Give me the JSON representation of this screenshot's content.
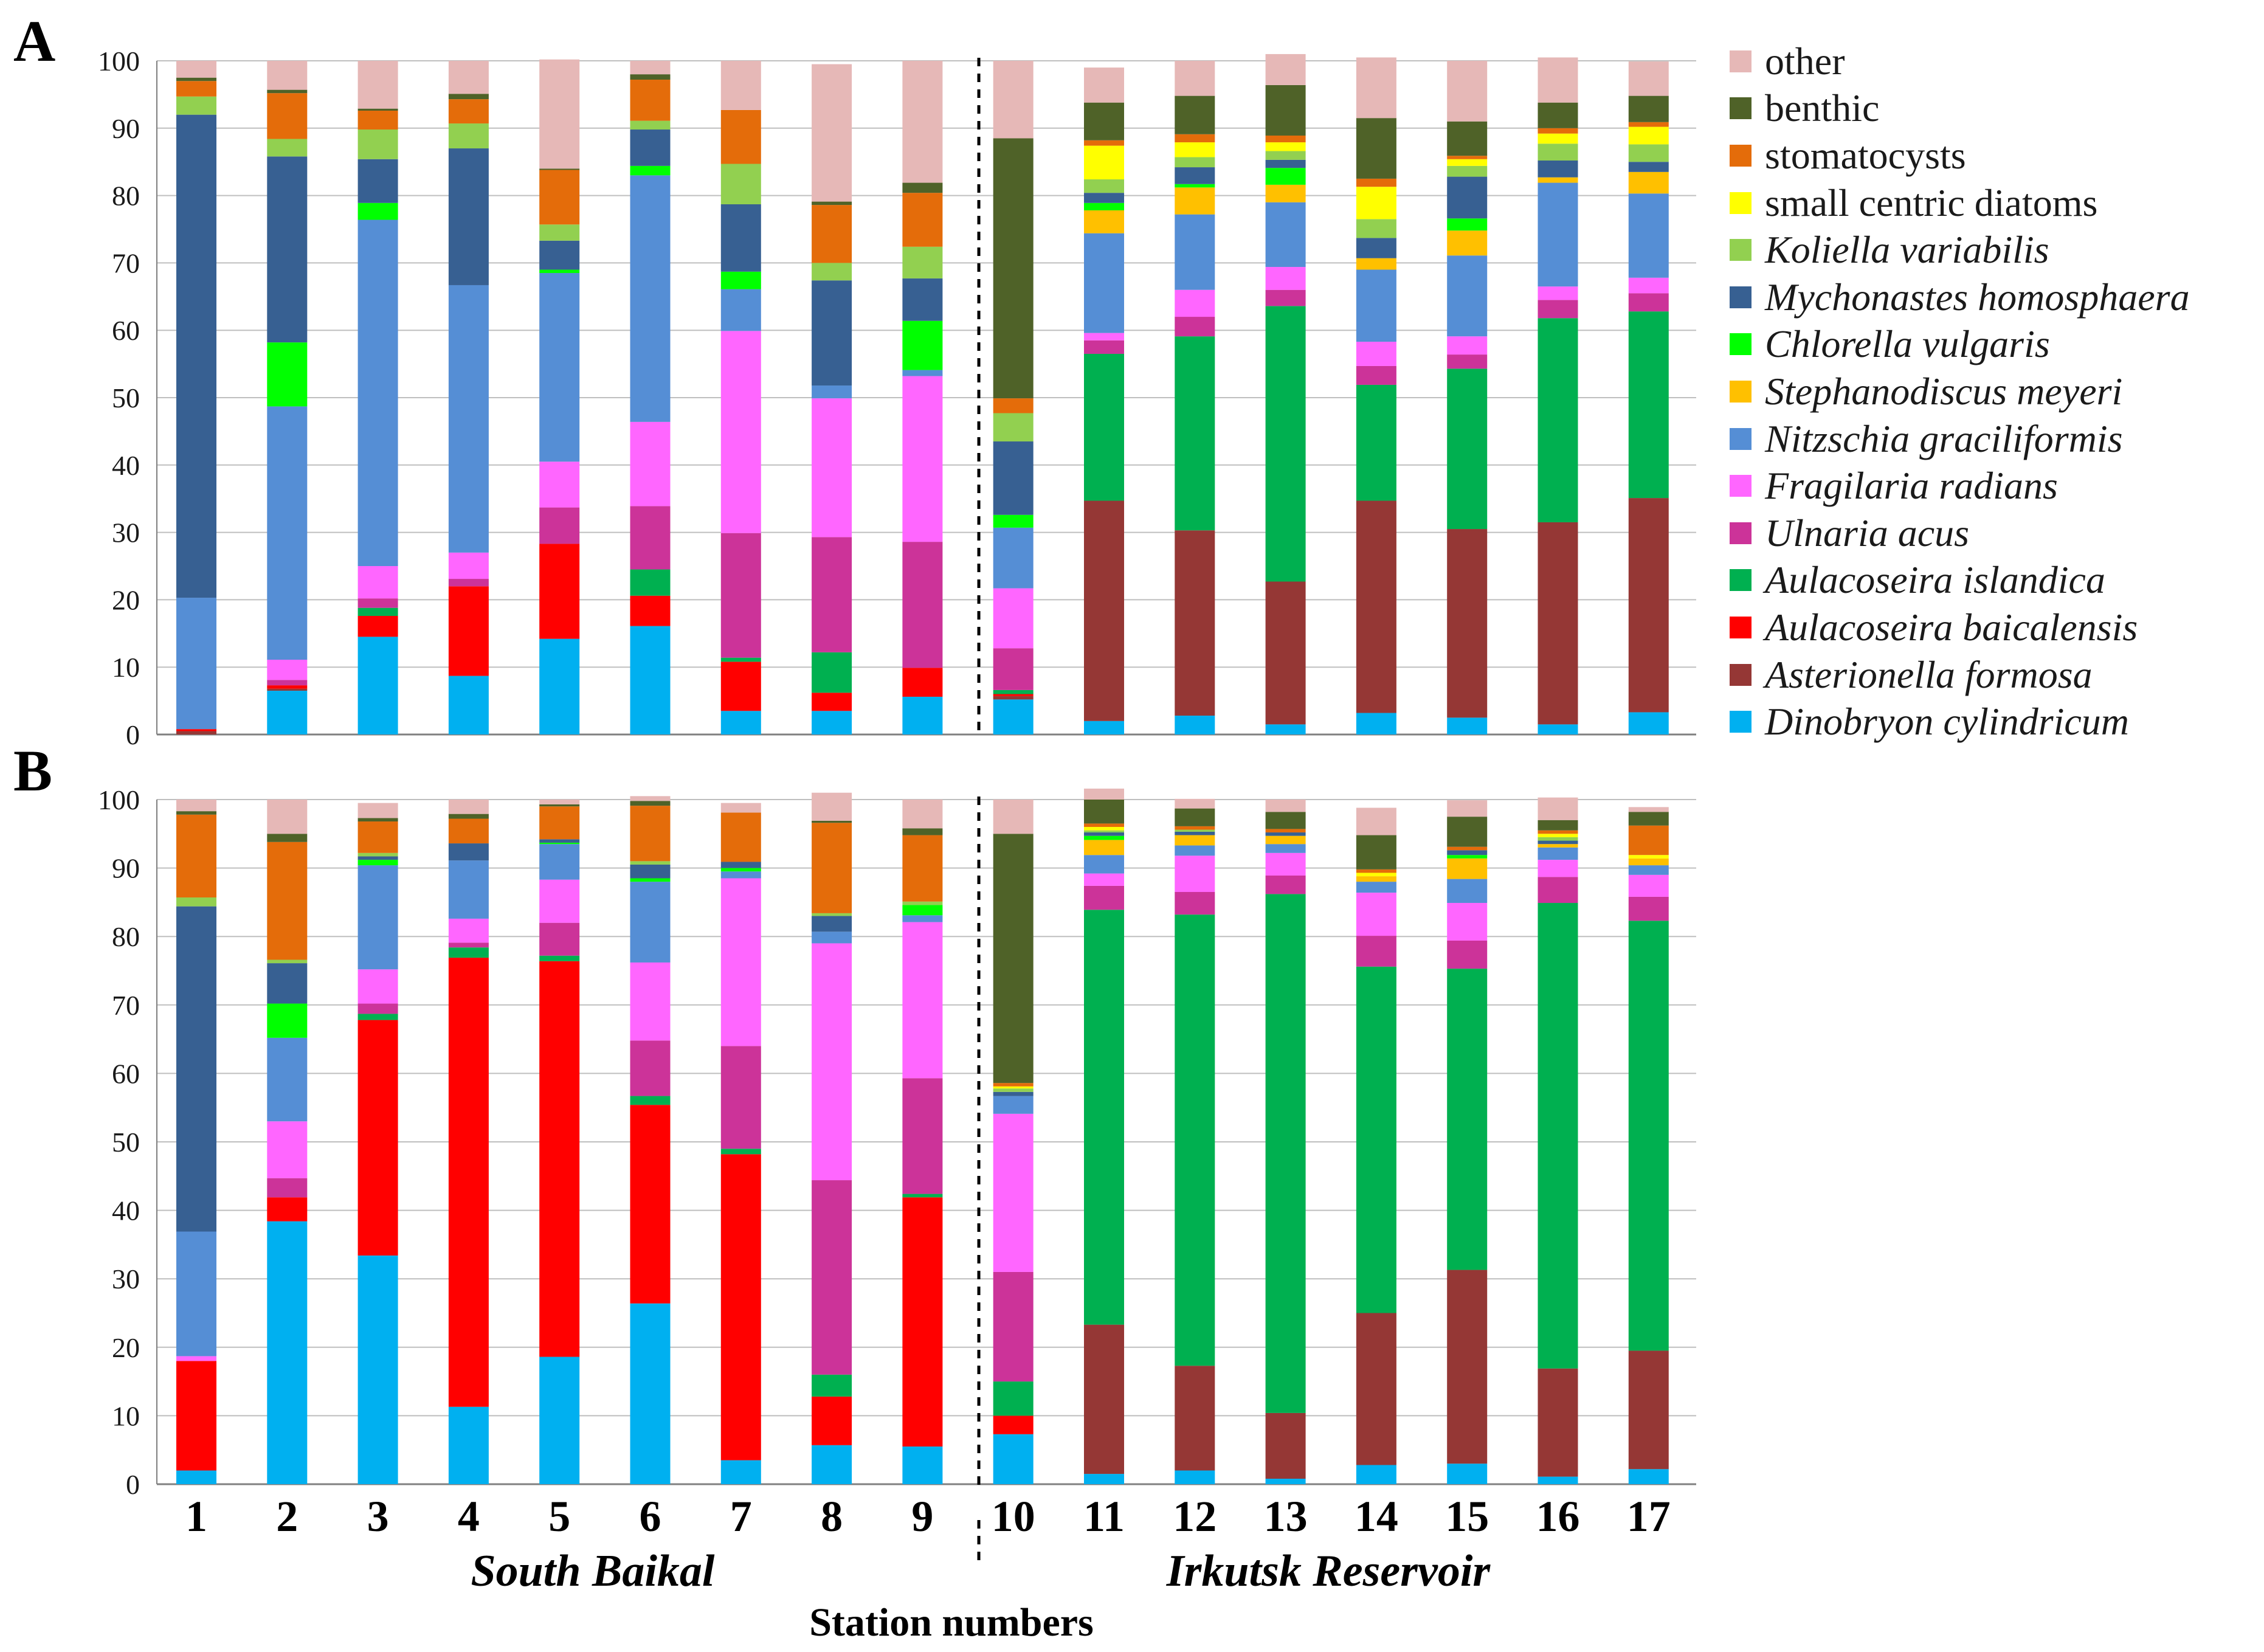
{
  "chart_data": {
    "type": "bar",
    "stacked": true,
    "x": [
      "1",
      "2",
      "3",
      "4",
      "5",
      "6",
      "7",
      "8",
      "9",
      "10",
      "11",
      "12",
      "13",
      "14",
      "15",
      "16",
      "17"
    ],
    "xlabel": "Station numbers",
    "region_labels": [
      "South  Baikal",
      "Irkutsk Reservoir"
    ],
    "y_ticks": [
      "0",
      "10",
      "20",
      "30",
      "40",
      "50",
      "60",
      "70",
      "80",
      "90",
      "100"
    ],
    "ylim": [
      0,
      100
    ],
    "grid": true,
    "legend_position": "right",
    "categories": [
      {
        "name": "other",
        "color": "#e6b8b7",
        "italic": false
      },
      {
        "name": "benthic",
        "color": "#4f6228",
        "italic": false
      },
      {
        "name": "stomatocysts",
        "color": "#e46c0a",
        "italic": false
      },
      {
        "name": "small centric diatoms",
        "color": "#ffff00",
        "italic": false
      },
      {
        "name": "Koliella variabilis",
        "color": "#92d050",
        "italic": true
      },
      {
        "name": "Mychonastes homosphaera",
        "color": "#376092",
        "italic": true
      },
      {
        "name": "Chlorella vulgaris",
        "color": "#00ff00",
        "italic": true
      },
      {
        "name": "Stephanodiscus meyeri",
        "color": "#ffc000",
        "italic": true
      },
      {
        "name": "Nitzschia graciliformis",
        "color": "#558ed5",
        "italic": true
      },
      {
        "name": "Fragilaria radians",
        "color": "#ff66ff",
        "italic": true
      },
      {
        "name": "Ulnaria acus",
        "color": "#cc3399",
        "italic": true
      },
      {
        "name": "Aulacoseira islandica",
        "color": "#00b050",
        "italic": true
      },
      {
        "name": "Aulacoseira baicalensis",
        "color": "#ff0000",
        "italic": true
      },
      {
        "name": "Asterionella formosa",
        "color": "#953735",
        "italic": true
      },
      {
        "name": "Dinobryon cylindricum",
        "color": "#00b0f0",
        "italic": true
      }
    ],
    "panels": [
      {
        "label": "A",
        "stack_order_bottom_to_top": [
          "Dinobryon cylindricum",
          "Asterionella formosa",
          "Aulacoseira baicalensis",
          "Aulacoseira islandica",
          "Ulnaria acus",
          "Fragilaria radians",
          "Nitzschia graciliformis",
          "Stephanodiscus meyeri",
          "Chlorella vulgaris",
          "Mychonastes homosphaera",
          "Koliella variabilis",
          "small centric diatoms",
          "stomatocysts",
          "benthic",
          "other"
        ],
        "series": [
          {
            "name": "Dinobryon cylindricum",
            "values": [
              0,
              6.5,
              14.5,
              8.7,
              14.2,
              16.1,
              3.5,
              3.5,
              5.6,
              5.2,
              2,
              2.8,
              1.5,
              3.2,
              2.5,
              1.5,
              3.3
            ]
          },
          {
            "name": "Asterionella formosa",
            "values": [
              0.5,
              0.3,
              0,
              0,
              0,
              0,
              0,
              0,
              0,
              0.5,
              32.7,
              27.5,
              21.2,
              31.5,
              28,
              30,
              31.8
            ]
          },
          {
            "name": "Aulacoseira baicalensis",
            "values": [
              0.3,
              0.5,
              3.1,
              13.3,
              14.1,
              4.5,
              7.3,
              2.7,
              4.3,
              0.3,
              0,
              0,
              0,
              0,
              0,
              0,
              0
            ]
          },
          {
            "name": "Aulacoseira islandica",
            "values": [
              0,
              0,
              1.2,
              0,
              0,
              3.9,
              0.6,
              6,
              0,
              0.6,
              21.8,
              28.8,
              40.9,
              17.2,
              23.8,
              30.3,
              27.7
            ]
          },
          {
            "name": "Ulnaria acus",
            "values": [
              0,
              0.8,
              1.4,
              1.1,
              5.4,
              9.4,
              18.5,
              17.1,
              18.7,
              6.2,
              2,
              2.9,
              2.4,
              2.8,
              2.1,
              2.7,
              2.7
            ]
          },
          {
            "name": "Fragilaria radians",
            "values": [
              0,
              3,
              4.8,
              3.9,
              6.8,
              12.5,
              30,
              20.6,
              24.6,
              8.9,
              1.1,
              4,
              3.4,
              3.6,
              2.7,
              2,
              2.3
            ]
          },
          {
            "name": "Nitzschia graciliformis",
            "values": [
              19.5,
              37.6,
              51.4,
              39.7,
              28,
              36.6,
              6.2,
              1.9,
              0.9,
              9,
              14.8,
              11.2,
              9.6,
              10.7,
              12,
              15.4,
              12.5
            ]
          },
          {
            "name": "Stephanodiscus meyeri",
            "values": [
              0,
              0,
              0,
              0,
              0,
              0,
              0,
              0,
              0,
              0,
              3.4,
              4,
              2.6,
              1.7,
              3.7,
              0.8,
              3.2
            ]
          },
          {
            "name": "Chlorella vulgaris",
            "values": [
              0,
              9.5,
              2.5,
              0,
              0.5,
              1.4,
              2.6,
              0,
              7.3,
              1.9,
              1.1,
              0.5,
              2.5,
              0,
              1.8,
              0,
              0
            ]
          },
          {
            "name": "Mychonastes homosphaera",
            "values": [
              71.7,
              27.6,
              6.5,
              20.3,
              4.3,
              5.4,
              10,
              15.6,
              6.3,
              10.9,
              1.5,
              2.5,
              1.2,
              3,
              6.2,
              2.5,
              1.5
            ]
          },
          {
            "name": "Koliella variabilis",
            "values": [
              2.7,
              2.6,
              4.4,
              3.7,
              2.4,
              1.3,
              6,
              2.6,
              4.7,
              4.2,
              2,
              1.5,
              1.3,
              2.8,
              1.6,
              2.5,
              2.6
            ]
          },
          {
            "name": "small centric diatoms",
            "values": [
              0,
              0,
              0,
              0,
              0,
              0,
              0,
              0,
              0,
              0,
              5,
              2.2,
              1.3,
              4.8,
              1,
              1.5,
              2.6
            ]
          },
          {
            "name": "stomatocysts",
            "values": [
              2.3,
              6.8,
              2.8,
              3.6,
              8.1,
              6.1,
              8,
              8.6,
              8,
              2.2,
              0.8,
              1.2,
              1,
              1.2,
              0.5,
              0.8,
              0.7
            ]
          },
          {
            "name": "benthic",
            "values": [
              0.5,
              0.5,
              0.3,
              0.8,
              0.2,
              0.8,
              0,
              0.5,
              1.5,
              38.6,
              5.6,
              5.7,
              7.5,
              9,
              5.1,
              3.8,
              3.9
            ]
          },
          {
            "name": "other",
            "values": [
              2.5,
              4.3,
              7.1,
              4.9,
              16.2,
              2,
              7.3,
              20.4,
              18.1,
              11.5,
              5.2,
              5.2,
              4.6,
              9,
              9,
              6.7,
              5.1
            ]
          }
        ]
      },
      {
        "label": "B",
        "stack_order_bottom_to_top": [
          "Dinobryon cylindricum",
          "Asterionella formosa",
          "Aulacoseira baicalensis",
          "Aulacoseira islandica",
          "Ulnaria acus",
          "Fragilaria radians",
          "Nitzschia graciliformis",
          "Stephanodiscus meyeri",
          "Chlorella vulgaris",
          "Mychonastes homosphaera",
          "Koliella variabilis",
          "small centric diatoms",
          "stomatocysts",
          "benthic",
          "other"
        ],
        "series": [
          {
            "name": "Dinobryon cylindricum",
            "values": [
              2,
              38.4,
              33.4,
              11.3,
              18.6,
              26.4,
              3.5,
              5.7,
              5.5,
              7.3,
              1.5,
              2,
              0.8,
              2.8,
              3,
              1.1,
              2.2
            ]
          },
          {
            "name": "Asterionella formosa",
            "values": [
              0,
              0,
              0,
              0,
              0,
              0,
              0,
              0,
              0,
              0,
              21.8,
              15.3,
              9.6,
              22.2,
              28.3,
              15.8,
              17.3
            ]
          },
          {
            "name": "Aulacoseira baicalensis",
            "values": [
              16,
              3.5,
              34.4,
              65.6,
              57.8,
              29,
              44.7,
              7.1,
              36.4,
              2.7,
              0,
              0,
              0,
              0,
              0,
              0,
              0
            ]
          },
          {
            "name": "Aulacoseira islandica",
            "values": [
              0,
              0,
              0.9,
              1.5,
              0.8,
              1.3,
              0.8,
              3.2,
              0.5,
              5,
              60.6,
              65.9,
              75.8,
              50.6,
              44,
              68,
              62.8
            ]
          },
          {
            "name": "Ulnaria acus",
            "values": [
              0,
              2.8,
              1.5,
              0.7,
              4.8,
              8.1,
              15,
              28.4,
              16.9,
              16,
              3.5,
              3.3,
              2.7,
              4.5,
              4.1,
              3.8,
              3.5
            ]
          },
          {
            "name": "Fragilaria radians",
            "values": [
              0.7,
              8.3,
              5,
              3.5,
              6.3,
              11.4,
              24.5,
              34.6,
              22.8,
              23.1,
              1.8,
              5.3,
              3.3,
              6.3,
              5.5,
              2.5,
              3.2
            ]
          },
          {
            "name": "Nitzschia graciliformis",
            "values": [
              18.2,
              12.2,
              15.2,
              8.5,
              5.2,
              11.8,
              1,
              1.7,
              1,
              2.6,
              2.7,
              1.5,
              1.3,
              1.6,
              3.5,
              1.8,
              1.4
            ]
          },
          {
            "name": "Stephanodiscus meyeri",
            "values": [
              0,
              0,
              0,
              0,
              0,
              0,
              0,
              0,
              0,
              0,
              2.2,
              1.5,
              1.2,
              0.8,
              3,
              0.5,
              1
            ]
          },
          {
            "name": "Chlorella vulgaris",
            "values": [
              0,
              5,
              0.8,
              0,
              0.2,
              0.5,
              0.5,
              0,
              1.5,
              0,
              0.6,
              0,
              0,
              0,
              0.5,
              0,
              0
            ]
          },
          {
            "name": "Mychonastes homosphaera",
            "values": [
              47.5,
              5.9,
              0.5,
              2.5,
              0.5,
              2,
              0.9,
              2.3,
              0,
              0.6,
              0.5,
              0.5,
              0.5,
              0,
              0.7,
              0.5,
              0
            ]
          },
          {
            "name": "Koliella variabilis",
            "values": [
              1.3,
              0.5,
              0.5,
              0,
              0,
              0.5,
              0,
              0.4,
              0.5,
              0.5,
              0.3,
              0.3,
              0,
              0,
              0,
              0.5,
              0
            ]
          },
          {
            "name": "small centric diatoms",
            "values": [
              0,
              0,
              0,
              0,
              0,
              0,
              0,
              0,
              0,
              0.3,
              0.5,
              0,
              0,
              0.5,
              0,
              0.5,
              0.5
            ]
          },
          {
            "name": "stomatocysts",
            "values": [
              12.1,
              17.2,
              4.6,
              3.6,
              4.8,
              8.1,
              7.2,
              13.2,
              9.7,
              0.5,
              0.5,
              0.5,
              0.5,
              0.5,
              0.5,
              0.5,
              4.3
            ]
          },
          {
            "name": "benthic",
            "values": [
              0.5,
              1.2,
              0.5,
              0.7,
              0.3,
              0.7,
              0,
              0.3,
              1,
              36.4,
              3.5,
              2.6,
              2.5,
              5,
              4.4,
              1.5,
              2
            ]
          },
          {
            "name": "other",
            "values": [
              1.7,
              5,
              2.2,
              2.1,
              0.7,
              0.7,
              1.4,
              4.1,
              4.2,
              5,
              1.6,
              1.4,
              1.8,
              4,
              2.4,
              3.3,
              0.7
            ]
          }
        ]
      }
    ]
  }
}
